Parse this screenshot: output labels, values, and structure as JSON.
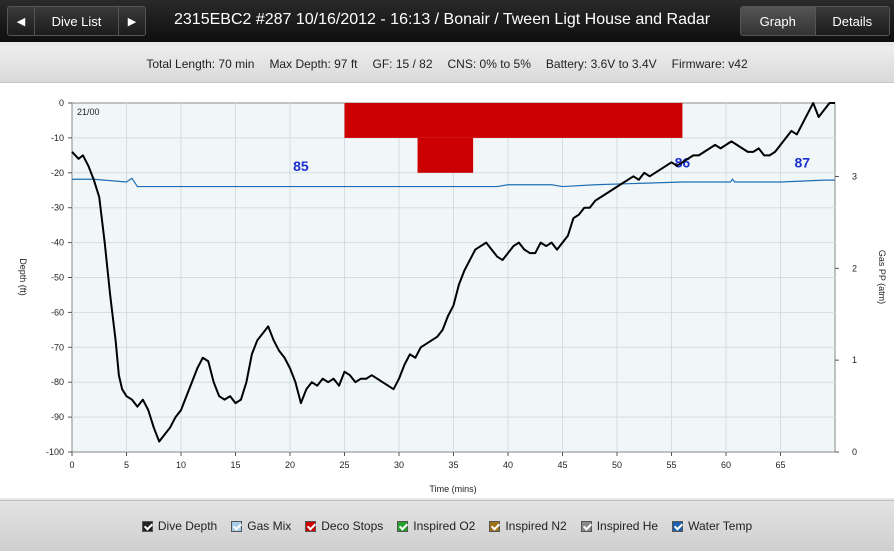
{
  "nav": {
    "prev_icon": "◀",
    "label": "Dive List",
    "next_icon": "▶"
  },
  "title": "2315EBC2 #287 10/16/2012 - 16:13  / Bonair  / Tween Ligt House and Radar",
  "view_tabs": [
    {
      "label": "Graph",
      "active": true
    },
    {
      "label": "Details",
      "active": false
    }
  ],
  "info": {
    "total_length": "Total Length: 70 min",
    "max_depth": "Max Depth: 97 ft",
    "gf": "GF: 15 / 82",
    "cns": "CNS: 0% to 5%",
    "battery": "Battery: 3.6V to 3.4V",
    "firmware": "Firmware: v42"
  },
  "chart_data": {
    "type": "line",
    "xlabel": "Time (mins)",
    "ylabel": "Depth (ft)",
    "y2label": "Gas PP (atm)",
    "xlim": [
      0,
      70
    ],
    "ylim": [
      0,
      100
    ],
    "y2lim": [
      0,
      3.8
    ],
    "x_ticks": [
      0,
      5,
      10,
      15,
      20,
      25,
      30,
      35,
      40,
      45,
      50,
      55,
      60,
      65
    ],
    "y_ticks": [
      0,
      -10,
      -20,
      -30,
      -40,
      -50,
      -60,
      -70,
      -80,
      -90,
      -100
    ],
    "y2_ticks": [
      0,
      1,
      2,
      3
    ],
    "corner_label": "21/00",
    "grid": true,
    "depth_series": {
      "name": "Dive Depth",
      "color": "#000000",
      "x": [
        0,
        0.3,
        0.6,
        1,
        1.5,
        2,
        2.5,
        3,
        3.5,
        4,
        4.3,
        4.6,
        5,
        5.5,
        6,
        6.5,
        7,
        7.5,
        8,
        8.5,
        9,
        9.5,
        10,
        10.5,
        11,
        11.5,
        12,
        12.5,
        13,
        13.5,
        14,
        14.5,
        15,
        15.5,
        16,
        16.5,
        17,
        17.5,
        18,
        18.5,
        19,
        19.5,
        20,
        20.5,
        21,
        21.5,
        22,
        22.5,
        23,
        23.5,
        24,
        24.5,
        25,
        25.5,
        26,
        26.5,
        27,
        27.5,
        28,
        28.5,
        29,
        29.5,
        30,
        30.5,
        31,
        31.5,
        32,
        32.5,
        33,
        33.5,
        34,
        34.5,
        35,
        35.5,
        36,
        36.5,
        37,
        37.5,
        38,
        38.5,
        39,
        39.5,
        40,
        40.5,
        41,
        41.5,
        42,
        42.5,
        43,
        43.5,
        44,
        44.5,
        45,
        45.5,
        46,
        46.5,
        47,
        47.5,
        48,
        48.5,
        49,
        49.5,
        50,
        50.5,
        51,
        51.5,
        52,
        52.5,
        53,
        53.5,
        54,
        54.5,
        55,
        55.5,
        56,
        56.5,
        57,
        57.5,
        58,
        58.5,
        59,
        59.5,
        60,
        60.5,
        61,
        61.5,
        62,
        62.5,
        63,
        63.5,
        64,
        64.5,
        65,
        65.5,
        66,
        66.5,
        67,
        67.5,
        68,
        68.5,
        69,
        69.5,
        70
      ],
      "y": [
        14,
        15,
        16,
        15,
        18,
        22,
        27,
        40,
        55,
        68,
        78,
        82,
        84,
        85,
        87,
        85,
        88,
        93,
        97,
        95,
        93,
        90,
        88,
        84,
        80,
        76,
        73,
        74,
        80,
        84,
        85,
        84,
        86,
        85,
        80,
        72,
        68,
        66,
        64,
        68,
        71,
        73,
        76,
        80,
        86,
        82,
        80,
        81,
        79,
        80,
        79,
        81,
        77,
        78,
        80,
        79,
        79,
        78,
        79,
        80,
        81,
        82,
        79,
        75,
        72,
        73,
        70,
        69,
        68,
        67,
        65,
        61,
        58,
        52,
        48,
        45,
        42,
        41,
        40,
        42,
        44,
        45,
        43,
        41,
        40,
        42,
        43,
        43,
        40,
        41,
        40,
        42,
        40,
        38,
        33,
        32,
        30,
        30,
        28,
        27,
        26,
        25,
        24,
        23,
        22,
        21,
        22,
        20,
        21,
        20,
        19,
        18,
        17,
        18,
        17,
        16,
        15,
        15,
        14,
        13,
        12,
        13,
        12,
        11,
        12,
        13,
        14,
        14,
        13,
        15,
        15,
        14,
        12,
        10,
        8,
        9,
        6,
        3,
        0,
        4,
        2,
        0,
        0
      ]
    },
    "gas_series": {
      "name": "Gas Mix",
      "color": "#1f6fb5",
      "x": [
        0,
        2,
        5,
        5.5,
        6,
        39,
        40,
        44,
        45,
        48,
        56,
        60.4,
        60.6,
        60.8,
        65,
        69,
        70
      ],
      "y": [
        2.97,
        2.97,
        2.94,
        2.98,
        2.89,
        2.89,
        2.91,
        2.91,
        2.89,
        2.91,
        2.94,
        2.94,
        2.97,
        2.94,
        2.94,
        2.96,
        2.96
      ],
      "labels": [
        {
          "text": "85",
          "x": 21,
          "y": 3.06
        },
        {
          "text": "86",
          "x": 56,
          "y": 3.1
        },
        {
          "text": "87",
          "x": 67,
          "y": 3.1
        }
      ]
    },
    "deco_stops": {
      "name": "Deco Stops",
      "color": "#cc0000",
      "blocks": [
        {
          "x0": 25,
          "x1": 56,
          "y0": 0,
          "y1": 10
        },
        {
          "x0": 31.7,
          "x1": 36.8,
          "y0": 10,
          "y1": 20
        }
      ]
    }
  },
  "legend": [
    {
      "label": "Dive Depth",
      "color": "#222222",
      "checked": true
    },
    {
      "label": "Gas Mix",
      "color": "#a6cce8",
      "checked": true
    },
    {
      "label": "Deco Stops",
      "color": "#cc0000",
      "checked": true
    },
    {
      "label": "Inspired O2",
      "color": "#22a22a",
      "checked": false
    },
    {
      "label": "Inspired N2",
      "color": "#a0701a",
      "checked": false
    },
    {
      "label": "Inspired He",
      "color": "#888888",
      "checked": false
    },
    {
      "label": "Water Temp",
      "color": "#1f5fb0",
      "checked": true
    }
  ]
}
